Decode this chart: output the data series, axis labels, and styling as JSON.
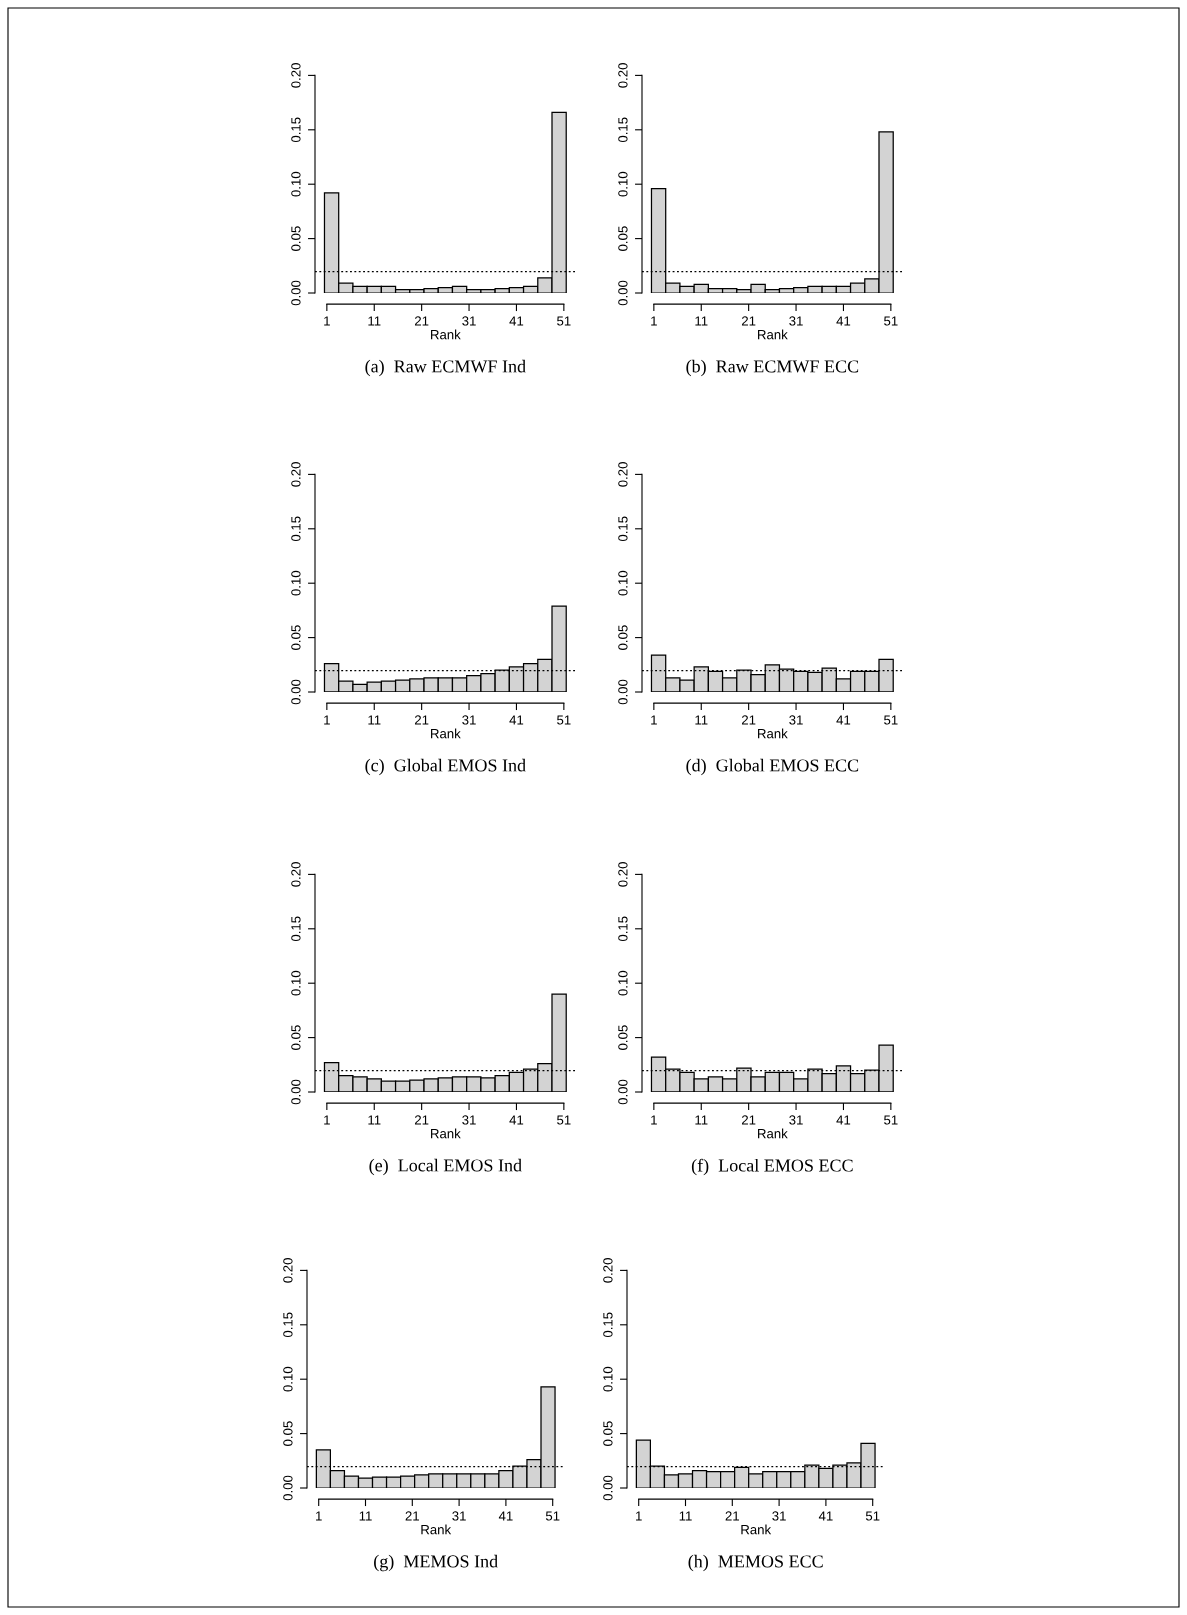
{
  "chart_data": [
    {
      "type": "histogram",
      "title": "(a)  Raw ECMWF Ind",
      "xlabel": "Rank",
      "color": "#d3d3d3",
      "bins": [
        0.5,
        3.5,
        6.5,
        9.5,
        12.5,
        15.5,
        18.5,
        21.5,
        24.5,
        27.5,
        30.5,
        33.5,
        36.5,
        39.5,
        42.5,
        45.5,
        48.5,
        51.5
      ],
      "values": [
        0.092,
        0.009,
        0.006,
        0.006,
        0.006,
        0.003,
        0.003,
        0.004,
        0.005,
        0.006,
        0.003,
        0.003,
        0.004,
        0.005,
        0.006,
        0.014,
        0.166
      ],
      "xlim": [
        -1.5,
        53.5
      ],
      "xticks": [
        1,
        11,
        21,
        31,
        41,
        51
      ],
      "ylim": [
        0,
        0.2
      ],
      "yticks": [
        {
          "value": 0,
          "label": "0.00"
        },
        {
          "value": 0.05,
          "label": "0.05"
        },
        {
          "value": 0.1,
          "label": "0.10"
        },
        {
          "value": 0.15,
          "label": "0.15"
        },
        {
          "value": 0.2,
          "label": "0.20"
        }
      ],
      "ref_lines": [
        {
          "axis": "y",
          "value": 0.0196,
          "line_style": "dotted",
          "color": "#000000"
        }
      ]
    },
    {
      "type": "histogram",
      "title": "(b)  Raw ECMWF ECC",
      "xlabel": "Rank",
      "color": "#d3d3d3",
      "bins": [
        0.5,
        3.5,
        6.5,
        9.5,
        12.5,
        15.5,
        18.5,
        21.5,
        24.5,
        27.5,
        30.5,
        33.5,
        36.5,
        39.5,
        42.5,
        45.5,
        48.5,
        51.5
      ],
      "values": [
        0.096,
        0.009,
        0.006,
        0.008,
        0.004,
        0.004,
        0.003,
        0.008,
        0.003,
        0.004,
        0.005,
        0.006,
        0.006,
        0.006,
        0.009,
        0.013,
        0.148
      ],
      "xlim": [
        -1.5,
        53.5
      ],
      "xticks": [
        1,
        11,
        21,
        31,
        41,
        51
      ],
      "ylim": [
        0,
        0.2
      ],
      "yticks": [
        {
          "value": 0,
          "label": "0.00"
        },
        {
          "value": 0.05,
          "label": "0.05"
        },
        {
          "value": 0.1,
          "label": "0.10"
        },
        {
          "value": 0.15,
          "label": "0.15"
        },
        {
          "value": 0.2,
          "label": "0.20"
        }
      ],
      "ref_lines": [
        {
          "axis": "y",
          "value": 0.0196,
          "line_style": "dotted",
          "color": "#000000"
        }
      ]
    },
    {
      "type": "histogram",
      "title": "(c)  Global EMOS Ind",
      "xlabel": "Rank",
      "color": "#d3d3d3",
      "bins": [
        0.5,
        3.5,
        6.5,
        9.5,
        12.5,
        15.5,
        18.5,
        21.5,
        24.5,
        27.5,
        30.5,
        33.5,
        36.5,
        39.5,
        42.5,
        45.5,
        48.5,
        51.5
      ],
      "values": [
        0.026,
        0.01,
        0.007,
        0.009,
        0.01,
        0.011,
        0.012,
        0.013,
        0.013,
        0.013,
        0.015,
        0.017,
        0.02,
        0.023,
        0.026,
        0.03,
        0.079
      ],
      "xlim": [
        -1.5,
        53.5
      ],
      "xticks": [
        1,
        11,
        21,
        31,
        41,
        51
      ],
      "ylim": [
        0,
        0.2
      ],
      "yticks": [
        {
          "value": 0,
          "label": "0.00"
        },
        {
          "value": 0.05,
          "label": "0.05"
        },
        {
          "value": 0.1,
          "label": "0.10"
        },
        {
          "value": 0.15,
          "label": "0.15"
        },
        {
          "value": 0.2,
          "label": "0.20"
        }
      ],
      "ref_lines": [
        {
          "axis": "y",
          "value": 0.0196,
          "line_style": "dotted",
          "color": "#000000"
        }
      ]
    },
    {
      "type": "histogram",
      "title": "(d)  Global EMOS ECC",
      "xlabel": "Rank",
      "color": "#d3d3d3",
      "bins": [
        0.5,
        3.5,
        6.5,
        9.5,
        12.5,
        15.5,
        18.5,
        21.5,
        24.5,
        27.5,
        30.5,
        33.5,
        36.5,
        39.5,
        42.5,
        45.5,
        48.5,
        51.5
      ],
      "values": [
        0.034,
        0.013,
        0.011,
        0.023,
        0.019,
        0.013,
        0.02,
        0.016,
        0.025,
        0.021,
        0.019,
        0.018,
        0.022,
        0.012,
        0.019,
        0.019,
        0.03
      ],
      "xlim": [
        -1.5,
        53.5
      ],
      "xticks": [
        1,
        11,
        21,
        31,
        41,
        51
      ],
      "ylim": [
        0,
        0.2
      ],
      "yticks": [
        {
          "value": 0,
          "label": "0.00"
        },
        {
          "value": 0.05,
          "label": "0.05"
        },
        {
          "value": 0.1,
          "label": "0.10"
        },
        {
          "value": 0.15,
          "label": "0.15"
        },
        {
          "value": 0.2,
          "label": "0.20"
        }
      ],
      "ref_lines": [
        {
          "axis": "y",
          "value": 0.0196,
          "line_style": "dotted",
          "color": "#000000"
        }
      ]
    },
    {
      "type": "histogram",
      "title": "(e)  Local EMOS Ind",
      "xlabel": "Rank",
      "color": "#d3d3d3",
      "bins": [
        0.5,
        3.5,
        6.5,
        9.5,
        12.5,
        15.5,
        18.5,
        21.5,
        24.5,
        27.5,
        30.5,
        33.5,
        36.5,
        39.5,
        42.5,
        45.5,
        48.5,
        51.5
      ],
      "values": [
        0.027,
        0.015,
        0.014,
        0.012,
        0.01,
        0.01,
        0.011,
        0.012,
        0.013,
        0.014,
        0.014,
        0.013,
        0.015,
        0.018,
        0.021,
        0.026,
        0.09
      ],
      "xlim": [
        -1.5,
        53.5
      ],
      "xticks": [
        1,
        11,
        21,
        31,
        41,
        51
      ],
      "ylim": [
        0,
        0.2
      ],
      "yticks": [
        {
          "value": 0,
          "label": "0.00"
        },
        {
          "value": 0.05,
          "label": "0.05"
        },
        {
          "value": 0.1,
          "label": "0.10"
        },
        {
          "value": 0.15,
          "label": "0.15"
        },
        {
          "value": 0.2,
          "label": "0.20"
        }
      ],
      "ref_lines": [
        {
          "axis": "y",
          "value": 0.0196,
          "line_style": "dotted",
          "color": "#000000"
        }
      ]
    },
    {
      "type": "histogram",
      "title": "(f)  Local EMOS ECC",
      "xlabel": "Rank",
      "color": "#d3d3d3",
      "bins": [
        0.5,
        3.5,
        6.5,
        9.5,
        12.5,
        15.5,
        18.5,
        21.5,
        24.5,
        27.5,
        30.5,
        33.5,
        36.5,
        39.5,
        42.5,
        45.5,
        48.5,
        51.5
      ],
      "values": [
        0.032,
        0.021,
        0.018,
        0.012,
        0.014,
        0.012,
        0.022,
        0.014,
        0.018,
        0.018,
        0.012,
        0.021,
        0.017,
        0.024,
        0.017,
        0.02,
        0.043
      ],
      "xlim": [
        -1.5,
        53.5
      ],
      "xticks": [
        1,
        11,
        21,
        31,
        41,
        51
      ],
      "ylim": [
        0,
        0.2
      ],
      "yticks": [
        {
          "value": 0,
          "label": "0.00"
        },
        {
          "value": 0.05,
          "label": "0.05"
        },
        {
          "value": 0.1,
          "label": "0.10"
        },
        {
          "value": 0.15,
          "label": "0.15"
        },
        {
          "value": 0.2,
          "label": "0.20"
        }
      ],
      "ref_lines": [
        {
          "axis": "y",
          "value": 0.0196,
          "line_style": "dotted",
          "color": "#000000"
        }
      ]
    },
    {
      "type": "histogram",
      "title": "(g)  MEMOS Ind",
      "xlabel": "Rank",
      "color": "#d3d3d3",
      "bins": [
        0.5,
        3.5,
        6.5,
        9.5,
        12.5,
        15.5,
        18.5,
        21.5,
        24.5,
        27.5,
        30.5,
        33.5,
        36.5,
        39.5,
        42.5,
        45.5,
        48.5,
        51.5
      ],
      "values": [
        0.035,
        0.016,
        0.011,
        0.009,
        0.01,
        0.01,
        0.011,
        0.012,
        0.013,
        0.013,
        0.013,
        0.013,
        0.013,
        0.016,
        0.02,
        0.026,
        0.093
      ],
      "xlim": [
        -1.5,
        53.5
      ],
      "xticks": [
        1,
        11,
        21,
        31,
        41,
        51
      ],
      "ylim": [
        0,
        0.2
      ],
      "yticks": [
        {
          "value": 0,
          "label": "0.00"
        },
        {
          "value": 0.05,
          "label": "0.05"
        },
        {
          "value": 0.1,
          "label": "0.10"
        },
        {
          "value": 0.15,
          "label": "0.15"
        },
        {
          "value": 0.2,
          "label": "0.20"
        }
      ],
      "ref_lines": [
        {
          "axis": "y",
          "value": 0.0196,
          "line_style": "dotted",
          "color": "#000000"
        }
      ]
    },
    {
      "type": "histogram",
      "title": "(h)  MEMOS ECC",
      "xlabel": "Rank",
      "color": "#d3d3d3",
      "bins": [
        0.5,
        3.5,
        6.5,
        9.5,
        12.5,
        15.5,
        18.5,
        21.5,
        24.5,
        27.5,
        30.5,
        33.5,
        36.5,
        39.5,
        42.5,
        45.5,
        48.5,
        51.5
      ],
      "values": [
        0.044,
        0.02,
        0.012,
        0.013,
        0.016,
        0.015,
        0.015,
        0.019,
        0.013,
        0.015,
        0.015,
        0.015,
        0.021,
        0.018,
        0.021,
        0.023,
        0.041
      ],
      "xlim": [
        -1.5,
        53.5
      ],
      "xticks": [
        1,
        11,
        21,
        31,
        41,
        51
      ],
      "ylim": [
        0,
        0.2
      ],
      "yticks": [
        {
          "value": 0,
          "label": "0.00"
        },
        {
          "value": 0.05,
          "label": "0.05"
        },
        {
          "value": 0.1,
          "label": "0.10"
        },
        {
          "value": 0.15,
          "label": "0.15"
        },
        {
          "value": 0.2,
          "label": "0.20"
        }
      ],
      "ref_lines": [
        {
          "axis": "y",
          "value": 0.0196,
          "line_style": "dotted",
          "color": "#000000"
        }
      ]
    }
  ]
}
